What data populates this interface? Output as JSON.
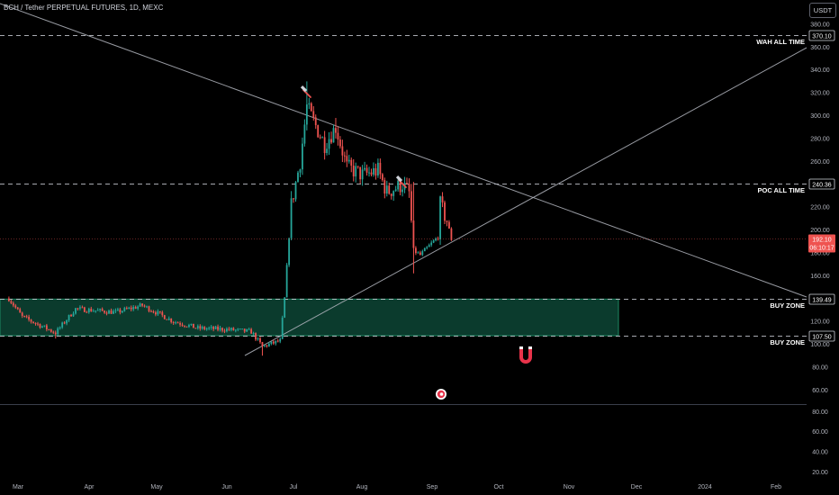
{
  "header": {
    "title": "BCH / Tether PERPETUAL FUTURES, 1D, MEXC",
    "currency": "USDT"
  },
  "colors": {
    "background": "#000000",
    "up": "#26a69a",
    "down": "#ef5350",
    "buy_zone_fill": "#0b3b2d",
    "buy_zone_stroke": "#1e8a63",
    "level_line": "#d1d4dc",
    "trend_line": "#b2b5be",
    "axis_text": "#b2b5be",
    "price_tag": "#ef5350",
    "magnet": "#e8334a"
  },
  "chart_data": {
    "type": "candlestick",
    "title": "BCH / Tether PERPETUAL FUTURES, 1D, MEXC",
    "currency": "USDT",
    "y_axis": {
      "scale": "linear",
      "range": [
        52,
        392
      ],
      "ticks": [
        60,
        80,
        100,
        120,
        140,
        160,
        180,
        200,
        220,
        240,
        260,
        280,
        300,
        320,
        340,
        360,
        380
      ],
      "tick_labels": [
        "60.00",
        "80.00",
        "100.00",
        "120.00",
        "140.00",
        "160.00",
        "180.00",
        "200.00",
        "220.00",
        "240.00",
        "260.00",
        "280.00",
        "300.00",
        "320.00",
        "340.00",
        "360.00",
        "380.00"
      ]
    },
    "lower_pane_axis": {
      "range": [
        13,
        93
      ],
      "ticks": [
        20,
        40,
        60,
        80
      ],
      "tick_labels": [
        "20.00",
        "40.00",
        "60.00",
        "80.00"
      ]
    },
    "x_axis": {
      "tick_labels": [
        "Mar",
        "Apr",
        "May",
        "Jun",
        "Jul",
        "Aug",
        "Sep",
        "Oct",
        "Nov",
        "Dec",
        "2024",
        "Feb"
      ]
    },
    "current_price": {
      "value": 192.1,
      "label": "192.10",
      "countdown": "06:10:17"
    },
    "levels": [
      {
        "name": "WAH ALL TIME",
        "value": 370.1,
        "label": "370.10"
      },
      {
        "name": "POC ALL TIME",
        "value": 240.36,
        "label": "240.36"
      },
      {
        "name": "BUY ZONE",
        "value": 139.49,
        "label": "139.49"
      },
      {
        "name": "BUY ZONE",
        "value": 107.5,
        "label": "107.50"
      }
    ],
    "buy_zone": {
      "top": 139.49,
      "bottom": 107.5
    },
    "anchors": [
      {
        "date": "2023-02-16",
        "price": 140
      },
      {
        "date": "2023-02-22",
        "price": 124
      },
      {
        "date": "2023-03-09",
        "price": 110
      },
      {
        "date": "2023-03-18",
        "price": 131
      },
      {
        "date": "2023-04-05",
        "price": 128
      },
      {
        "date": "2023-04-17",
        "price": 134
      },
      {
        "date": "2023-05-01",
        "price": 120
      },
      {
        "date": "2023-05-12",
        "price": 114
      },
      {
        "date": "2023-05-25",
        "price": 113
      },
      {
        "date": "2023-06-05",
        "price": 111
      },
      {
        "date": "2023-06-10",
        "price": 98
      },
      {
        "date": "2023-06-18",
        "price": 103
      },
      {
        "date": "2023-06-20",
        "price": 140
      },
      {
        "date": "2023-06-23",
        "price": 222
      },
      {
        "date": "2023-06-27",
        "price": 260
      },
      {
        "date": "2023-06-30",
        "price": 308
      },
      {
        "date": "2023-07-03",
        "price": 295
      },
      {
        "date": "2023-07-08",
        "price": 275
      },
      {
        "date": "2023-07-13",
        "price": 290
      },
      {
        "date": "2023-07-18",
        "price": 255
      },
      {
        "date": "2023-07-25",
        "price": 248
      },
      {
        "date": "2023-08-01",
        "price": 252
      },
      {
        "date": "2023-08-05",
        "price": 233
      },
      {
        "date": "2023-08-12",
        "price": 240
      },
      {
        "date": "2023-08-15",
        "price": 232
      },
      {
        "date": "2023-08-17",
        "price": 182
      },
      {
        "date": "2023-08-20",
        "price": 178
      },
      {
        "date": "2023-08-24",
        "price": 186
      },
      {
        "date": "2023-08-28",
        "price": 194
      },
      {
        "date": "2023-08-29",
        "price": 222
      },
      {
        "date": "2023-09-01",
        "price": 208
      },
      {
        "date": "2023-09-03",
        "price": 192
      }
    ],
    "annotations": [
      "WAH ALL TIME",
      "POC ALL TIME",
      "BUY ZONE",
      "BUY ZONE"
    ]
  }
}
